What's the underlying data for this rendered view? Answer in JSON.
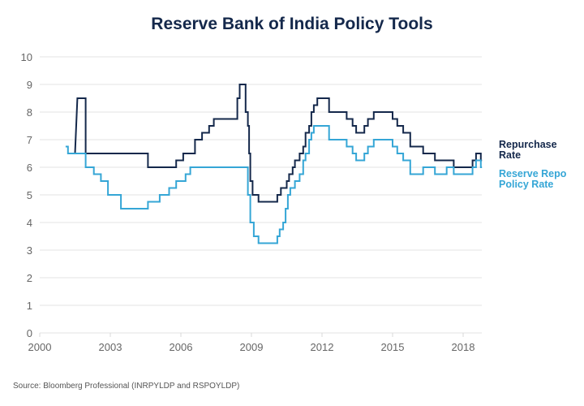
{
  "chart_data": {
    "type": "line",
    "title": "Reserve Bank of India Policy Tools",
    "xlabel": "",
    "ylabel": "",
    "xlim": [
      2000,
      2018.8
    ],
    "ylim": [
      0,
      10
    ],
    "x_ticks": [
      "2000",
      "2003",
      "2006",
      "2009",
      "2012",
      "2015",
      "2018"
    ],
    "x_tick_values": [
      2000,
      2003,
      2006,
      2009,
      2012,
      2015,
      2018
    ],
    "y_ticks": [
      "0",
      "1",
      "2",
      "3",
      "4",
      "5",
      "6",
      "7",
      "8",
      "9",
      "10"
    ],
    "grid": true,
    "legend_position": "right",
    "step": true,
    "series": [
      {
        "name": "Repurchase Rate",
        "color": "#14284b",
        "points": [
          [
            2001.5,
            6.5
          ],
          [
            2001.6,
            8.5
          ],
          [
            2001.95,
            8.5
          ],
          [
            2001.95,
            6.5
          ],
          [
            2004.6,
            6.5
          ],
          [
            2004.6,
            6.0
          ],
          [
            2005.8,
            6.0
          ],
          [
            2005.8,
            6.25
          ],
          [
            2006.1,
            6.25
          ],
          [
            2006.1,
            6.5
          ],
          [
            2006.6,
            6.5
          ],
          [
            2006.6,
            7.0
          ],
          [
            2006.9,
            7.0
          ],
          [
            2006.9,
            7.25
          ],
          [
            2007.2,
            7.25
          ],
          [
            2007.2,
            7.5
          ],
          [
            2007.4,
            7.5
          ],
          [
            2007.4,
            7.75
          ],
          [
            2008.4,
            7.75
          ],
          [
            2008.4,
            8.5
          ],
          [
            2008.5,
            8.5
          ],
          [
            2008.5,
            9.0
          ],
          [
            2008.75,
            9.0
          ],
          [
            2008.75,
            8.0
          ],
          [
            2008.85,
            8.0
          ],
          [
            2008.85,
            7.5
          ],
          [
            2008.9,
            7.5
          ],
          [
            2008.9,
            6.5
          ],
          [
            2008.95,
            6.5
          ],
          [
            2008.95,
            5.5
          ],
          [
            2009.05,
            5.5
          ],
          [
            2009.05,
            5.0
          ],
          [
            2009.3,
            5.0
          ],
          [
            2009.3,
            4.75
          ],
          [
            2010.1,
            4.75
          ],
          [
            2010.1,
            5.0
          ],
          [
            2010.25,
            5.0
          ],
          [
            2010.25,
            5.25
          ],
          [
            2010.5,
            5.25
          ],
          [
            2010.5,
            5.5
          ],
          [
            2010.6,
            5.5
          ],
          [
            2010.6,
            5.75
          ],
          [
            2010.75,
            5.75
          ],
          [
            2010.75,
            6.0
          ],
          [
            2010.85,
            6.0
          ],
          [
            2010.85,
            6.25
          ],
          [
            2011.05,
            6.25
          ],
          [
            2011.05,
            6.5
          ],
          [
            2011.2,
            6.5
          ],
          [
            2011.2,
            6.75
          ],
          [
            2011.3,
            6.75
          ],
          [
            2011.3,
            7.25
          ],
          [
            2011.45,
            7.25
          ],
          [
            2011.45,
            7.5
          ],
          [
            2011.55,
            7.5
          ],
          [
            2011.55,
            8.0
          ],
          [
            2011.65,
            8.0
          ],
          [
            2011.65,
            8.25
          ],
          [
            2011.8,
            8.25
          ],
          [
            2011.8,
            8.5
          ],
          [
            2012.3,
            8.5
          ],
          [
            2012.3,
            8.0
          ],
          [
            2013.05,
            8.0
          ],
          [
            2013.05,
            7.75
          ],
          [
            2013.3,
            7.75
          ],
          [
            2013.3,
            7.5
          ],
          [
            2013.45,
            7.5
          ],
          [
            2013.45,
            7.25
          ],
          [
            2013.8,
            7.25
          ],
          [
            2013.8,
            7.5
          ],
          [
            2013.95,
            7.5
          ],
          [
            2013.95,
            7.75
          ],
          [
            2014.2,
            7.75
          ],
          [
            2014.2,
            8.0
          ],
          [
            2015.0,
            8.0
          ],
          [
            2015.0,
            7.75
          ],
          [
            2015.2,
            7.75
          ],
          [
            2015.2,
            7.5
          ],
          [
            2015.45,
            7.5
          ],
          [
            2015.45,
            7.25
          ],
          [
            2015.75,
            7.25
          ],
          [
            2015.75,
            6.75
          ],
          [
            2016.3,
            6.75
          ],
          [
            2016.3,
            6.5
          ],
          [
            2016.8,
            6.5
          ],
          [
            2016.8,
            6.25
          ],
          [
            2017.6,
            6.25
          ],
          [
            2017.6,
            6.0
          ],
          [
            2018.4,
            6.0
          ],
          [
            2018.4,
            6.25
          ],
          [
            2018.55,
            6.25
          ],
          [
            2018.55,
            6.5
          ],
          [
            2018.75,
            6.5
          ],
          [
            2018.75,
            6.25
          ],
          [
            2018.8,
            6.25
          ]
        ]
      },
      {
        "name": "Reserve Repo Policy Rate",
        "color": "#35a6d6",
        "points": [
          [
            2001.1,
            6.75
          ],
          [
            2001.2,
            6.75
          ],
          [
            2001.2,
            6.5
          ],
          [
            2001.95,
            6.5
          ],
          [
            2001.95,
            6.0
          ],
          [
            2002.3,
            6.0
          ],
          [
            2002.3,
            5.75
          ],
          [
            2002.6,
            5.75
          ],
          [
            2002.6,
            5.5
          ],
          [
            2002.9,
            5.5
          ],
          [
            2002.9,
            5.0
          ],
          [
            2003.45,
            5.0
          ],
          [
            2003.45,
            4.5
          ],
          [
            2004.6,
            4.5
          ],
          [
            2004.6,
            4.75
          ],
          [
            2005.1,
            4.75
          ],
          [
            2005.1,
            5.0
          ],
          [
            2005.5,
            5.0
          ],
          [
            2005.5,
            5.25
          ],
          [
            2005.8,
            5.25
          ],
          [
            2005.8,
            5.5
          ],
          [
            2006.2,
            5.5
          ],
          [
            2006.2,
            5.75
          ],
          [
            2006.4,
            5.75
          ],
          [
            2006.4,
            6.0
          ],
          [
            2008.85,
            6.0
          ],
          [
            2008.85,
            5.0
          ],
          [
            2008.95,
            5.0
          ],
          [
            2008.95,
            4.0
          ],
          [
            2009.1,
            4.0
          ],
          [
            2009.1,
            3.5
          ],
          [
            2009.3,
            3.5
          ],
          [
            2009.3,
            3.25
          ],
          [
            2010.1,
            3.25
          ],
          [
            2010.1,
            3.5
          ],
          [
            2010.2,
            3.5
          ],
          [
            2010.2,
            3.75
          ],
          [
            2010.35,
            3.75
          ],
          [
            2010.35,
            4.0
          ],
          [
            2010.45,
            4.0
          ],
          [
            2010.45,
            4.5
          ],
          [
            2010.55,
            4.5
          ],
          [
            2010.55,
            5.0
          ],
          [
            2010.65,
            5.0
          ],
          [
            2010.65,
            5.25
          ],
          [
            2010.85,
            5.25
          ],
          [
            2010.85,
            5.5
          ],
          [
            2011.05,
            5.5
          ],
          [
            2011.05,
            5.75
          ],
          [
            2011.2,
            5.75
          ],
          [
            2011.2,
            6.25
          ],
          [
            2011.3,
            6.25
          ],
          [
            2011.3,
            6.5
          ],
          [
            2011.45,
            6.5
          ],
          [
            2011.45,
            7.0
          ],
          [
            2011.55,
            7.0
          ],
          [
            2011.55,
            7.25
          ],
          [
            2011.65,
            7.25
          ],
          [
            2011.65,
            7.5
          ],
          [
            2012.3,
            7.5
          ],
          [
            2012.3,
            7.0
          ],
          [
            2013.05,
            7.0
          ],
          [
            2013.05,
            6.75
          ],
          [
            2013.3,
            6.75
          ],
          [
            2013.3,
            6.5
          ],
          [
            2013.45,
            6.5
          ],
          [
            2013.45,
            6.25
          ],
          [
            2013.8,
            6.25
          ],
          [
            2013.8,
            6.5
          ],
          [
            2013.95,
            6.5
          ],
          [
            2013.95,
            6.75
          ],
          [
            2014.2,
            6.75
          ],
          [
            2014.2,
            7.0
          ],
          [
            2015.0,
            7.0
          ],
          [
            2015.0,
            6.75
          ],
          [
            2015.2,
            6.75
          ],
          [
            2015.2,
            6.5
          ],
          [
            2015.45,
            6.5
          ],
          [
            2015.45,
            6.25
          ],
          [
            2015.75,
            6.25
          ],
          [
            2015.75,
            5.75
          ],
          [
            2016.3,
            5.75
          ],
          [
            2016.3,
            6.0
          ],
          [
            2016.8,
            6.0
          ],
          [
            2016.8,
            5.75
          ],
          [
            2017.3,
            5.75
          ],
          [
            2017.3,
            6.0
          ],
          [
            2017.6,
            6.0
          ],
          [
            2017.6,
            5.75
          ],
          [
            2018.4,
            5.75
          ],
          [
            2018.4,
            6.0
          ],
          [
            2018.55,
            6.0
          ],
          [
            2018.55,
            6.25
          ],
          [
            2018.75,
            6.25
          ],
          [
            2018.75,
            6.0
          ],
          [
            2018.8,
            6.0
          ]
        ]
      }
    ]
  },
  "legend": {
    "repo_line1": "Repurchase",
    "repo_line2": "Rate",
    "reverse_line1": "Reserve Repo",
    "reverse_line2": "Policy Rate"
  },
  "source": "Source: Bloomberg Professional (INRPYLDP and RSPOYLDP)"
}
